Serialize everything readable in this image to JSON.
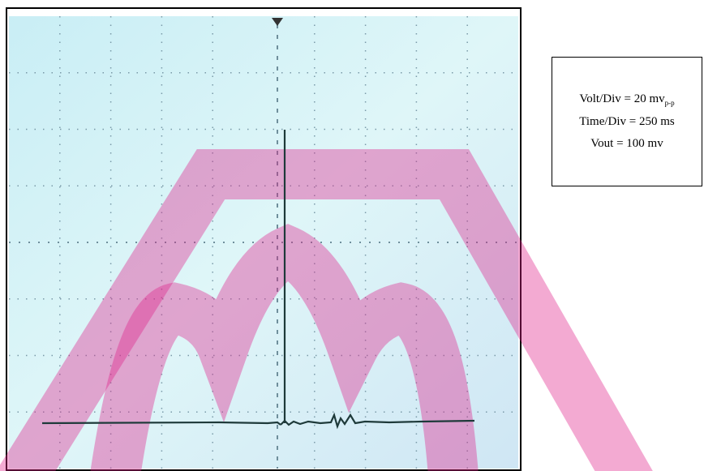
{
  "settings": [
    {
      "label": "Volt/Div = 20 mv",
      "subscript": "p-p"
    },
    {
      "label": "Time/Div = 250 ms"
    },
    {
      "label": "Vout = 100 mv"
    }
  ]
}
